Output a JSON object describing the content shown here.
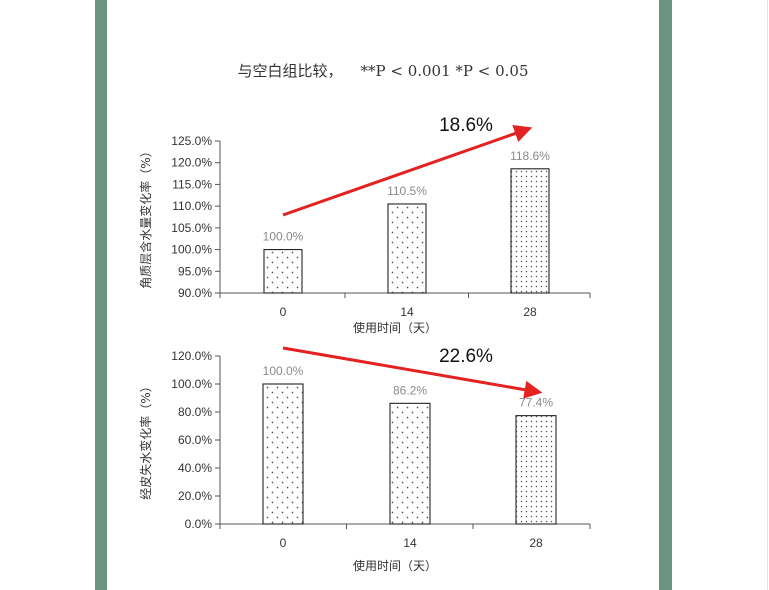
{
  "header": {
    "comparison": "与空白组比较，",
    "significance": "**P < 0.001 *P < 0.05"
  },
  "colors": {
    "frame": "#6a9582",
    "arrow": "#e52222",
    "bar_edge": "#222222",
    "dot": "#555555"
  },
  "chart_data": [
    {
      "type": "bar",
      "categories": [
        "0",
        "14",
        "28"
      ],
      "values": [
        100.0,
        110.5,
        118.6
      ],
      "value_labels": [
        "100.0%",
        "110.5%",
        "118.6%"
      ],
      "xlabel": "使用时间（天）",
      "ylabel": "角质层含水量变化率（%）",
      "ylim": [
        90,
        125
      ],
      "yticks": [
        90,
        95,
        100,
        105,
        110,
        115,
        120,
        125
      ],
      "ytick_labels": [
        "90.0%",
        "95.0%",
        "100.0%",
        "105.0%",
        "110.0%",
        "115.0%",
        "120.0%",
        "125.0%"
      ],
      "grid": false,
      "annotation": {
        "text": "18.6%",
        "direction": "up"
      }
    },
    {
      "type": "bar",
      "categories": [
        "0",
        "14",
        "28"
      ],
      "values": [
        100.0,
        86.2,
        77.4
      ],
      "value_labels": [
        "100.0%",
        "86.2%",
        "77.4%"
      ],
      "xlabel": "使用时间（天）",
      "ylabel": "经皮失水变化率（%）",
      "ylim": [
        0,
        120
      ],
      "yticks": [
        0,
        20,
        40,
        60,
        80,
        100,
        120
      ],
      "ytick_labels": [
        "0.0%",
        "20.0%",
        "40.0%",
        "60.0%",
        "80.0%",
        "100.0%",
        "120.0%"
      ],
      "grid": false,
      "annotation": {
        "text": "22.6%",
        "direction": "down"
      }
    }
  ]
}
